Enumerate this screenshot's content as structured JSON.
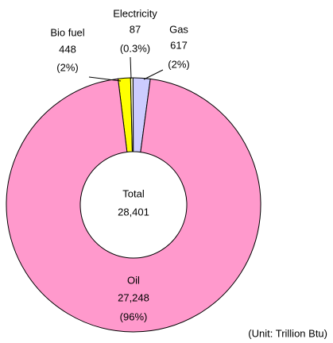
{
  "chart_data": {
    "type": "donut",
    "categories": [
      "Bio fuel",
      "Electricity",
      "Gas",
      "Oil"
    ],
    "values": [
      448,
      87,
      617,
      27248
    ],
    "value_labels": [
      "448",
      "87",
      "617",
      "27,248"
    ],
    "percents": [
      2,
      0.3,
      2,
      96
    ],
    "percent_labels": [
      "(2%)",
      "(0.3%)",
      "(2%)",
      "(96%)"
    ],
    "colors": [
      "#ffff00",
      "#ffffe0",
      "#ccccff",
      "#ff99cc"
    ],
    "center_title": "Total",
    "total": 28401,
    "total_label": "28,401",
    "note": "(Unit: Trillion Btu)"
  }
}
